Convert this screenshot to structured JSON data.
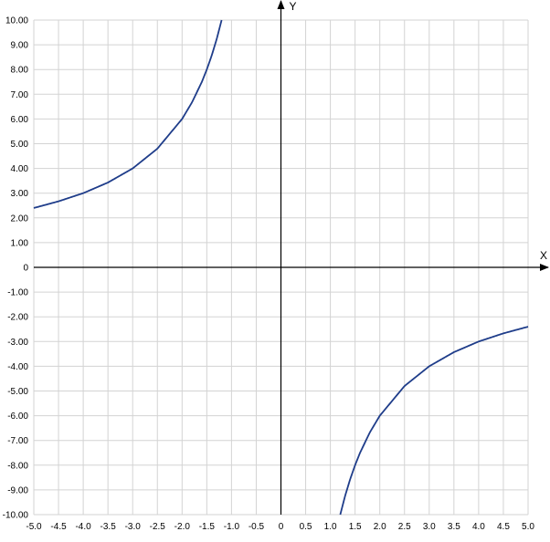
{
  "chart_data": {
    "type": "line",
    "title": "",
    "xlabel": "X",
    "ylabel": "Y",
    "xlim": [
      -5.0,
      5.0
    ],
    "ylim": [
      -10.0,
      10.0
    ],
    "grid": true,
    "x_tick_labels": [
      "-5.0",
      "-4.5",
      "-4.0",
      "-3.5",
      "-3.0",
      "-2.5",
      "-2.0",
      "-1.5",
      "-1.0",
      "-0.5",
      "0",
      "0.5",
      "1.0",
      "1.5",
      "2.0",
      "2.5",
      "3.0",
      "3.5",
      "4.0",
      "4.5",
      "5.0"
    ],
    "y_tick_labels": [
      "10.00",
      "9.00",
      "8.00",
      "7.00",
      "6.00",
      "5.00",
      "4.00",
      "3.00",
      "2.00",
      "1.00",
      "0",
      "-1.00",
      "-2.00",
      "-3.00",
      "-4.00",
      "-5.00",
      "-6.00",
      "-7.00",
      "-8.00",
      "-9.00",
      "-10.00"
    ],
    "series": [
      {
        "color": "#1f3d8a",
        "segments": [
          {
            "x": [
              -5.0,
              -4.5,
              -4.0,
              -3.5,
              -3.0,
              -2.5,
              -2.0,
              -1.8,
              -1.6,
              -1.5,
              -1.4,
              -1.3,
              -1.2
            ],
            "y": [
              2.4,
              2.67,
              3.0,
              3.43,
              4.0,
              4.8,
              6.0,
              6.67,
              7.5,
              8.0,
              8.57,
              9.23,
              10.0
            ]
          },
          {
            "x": [
              1.2,
              1.3,
              1.4,
              1.5,
              1.6,
              1.8,
              2.0,
              2.5,
              3.0,
              3.5,
              4.0,
              4.5,
              5.0
            ],
            "y": [
              -10.0,
              -9.23,
              -8.57,
              -8.0,
              -7.5,
              -6.67,
              -6.0,
              -4.8,
              -4.0,
              -3.43,
              -3.0,
              -2.67,
              -2.4
            ]
          }
        ]
      }
    ]
  }
}
